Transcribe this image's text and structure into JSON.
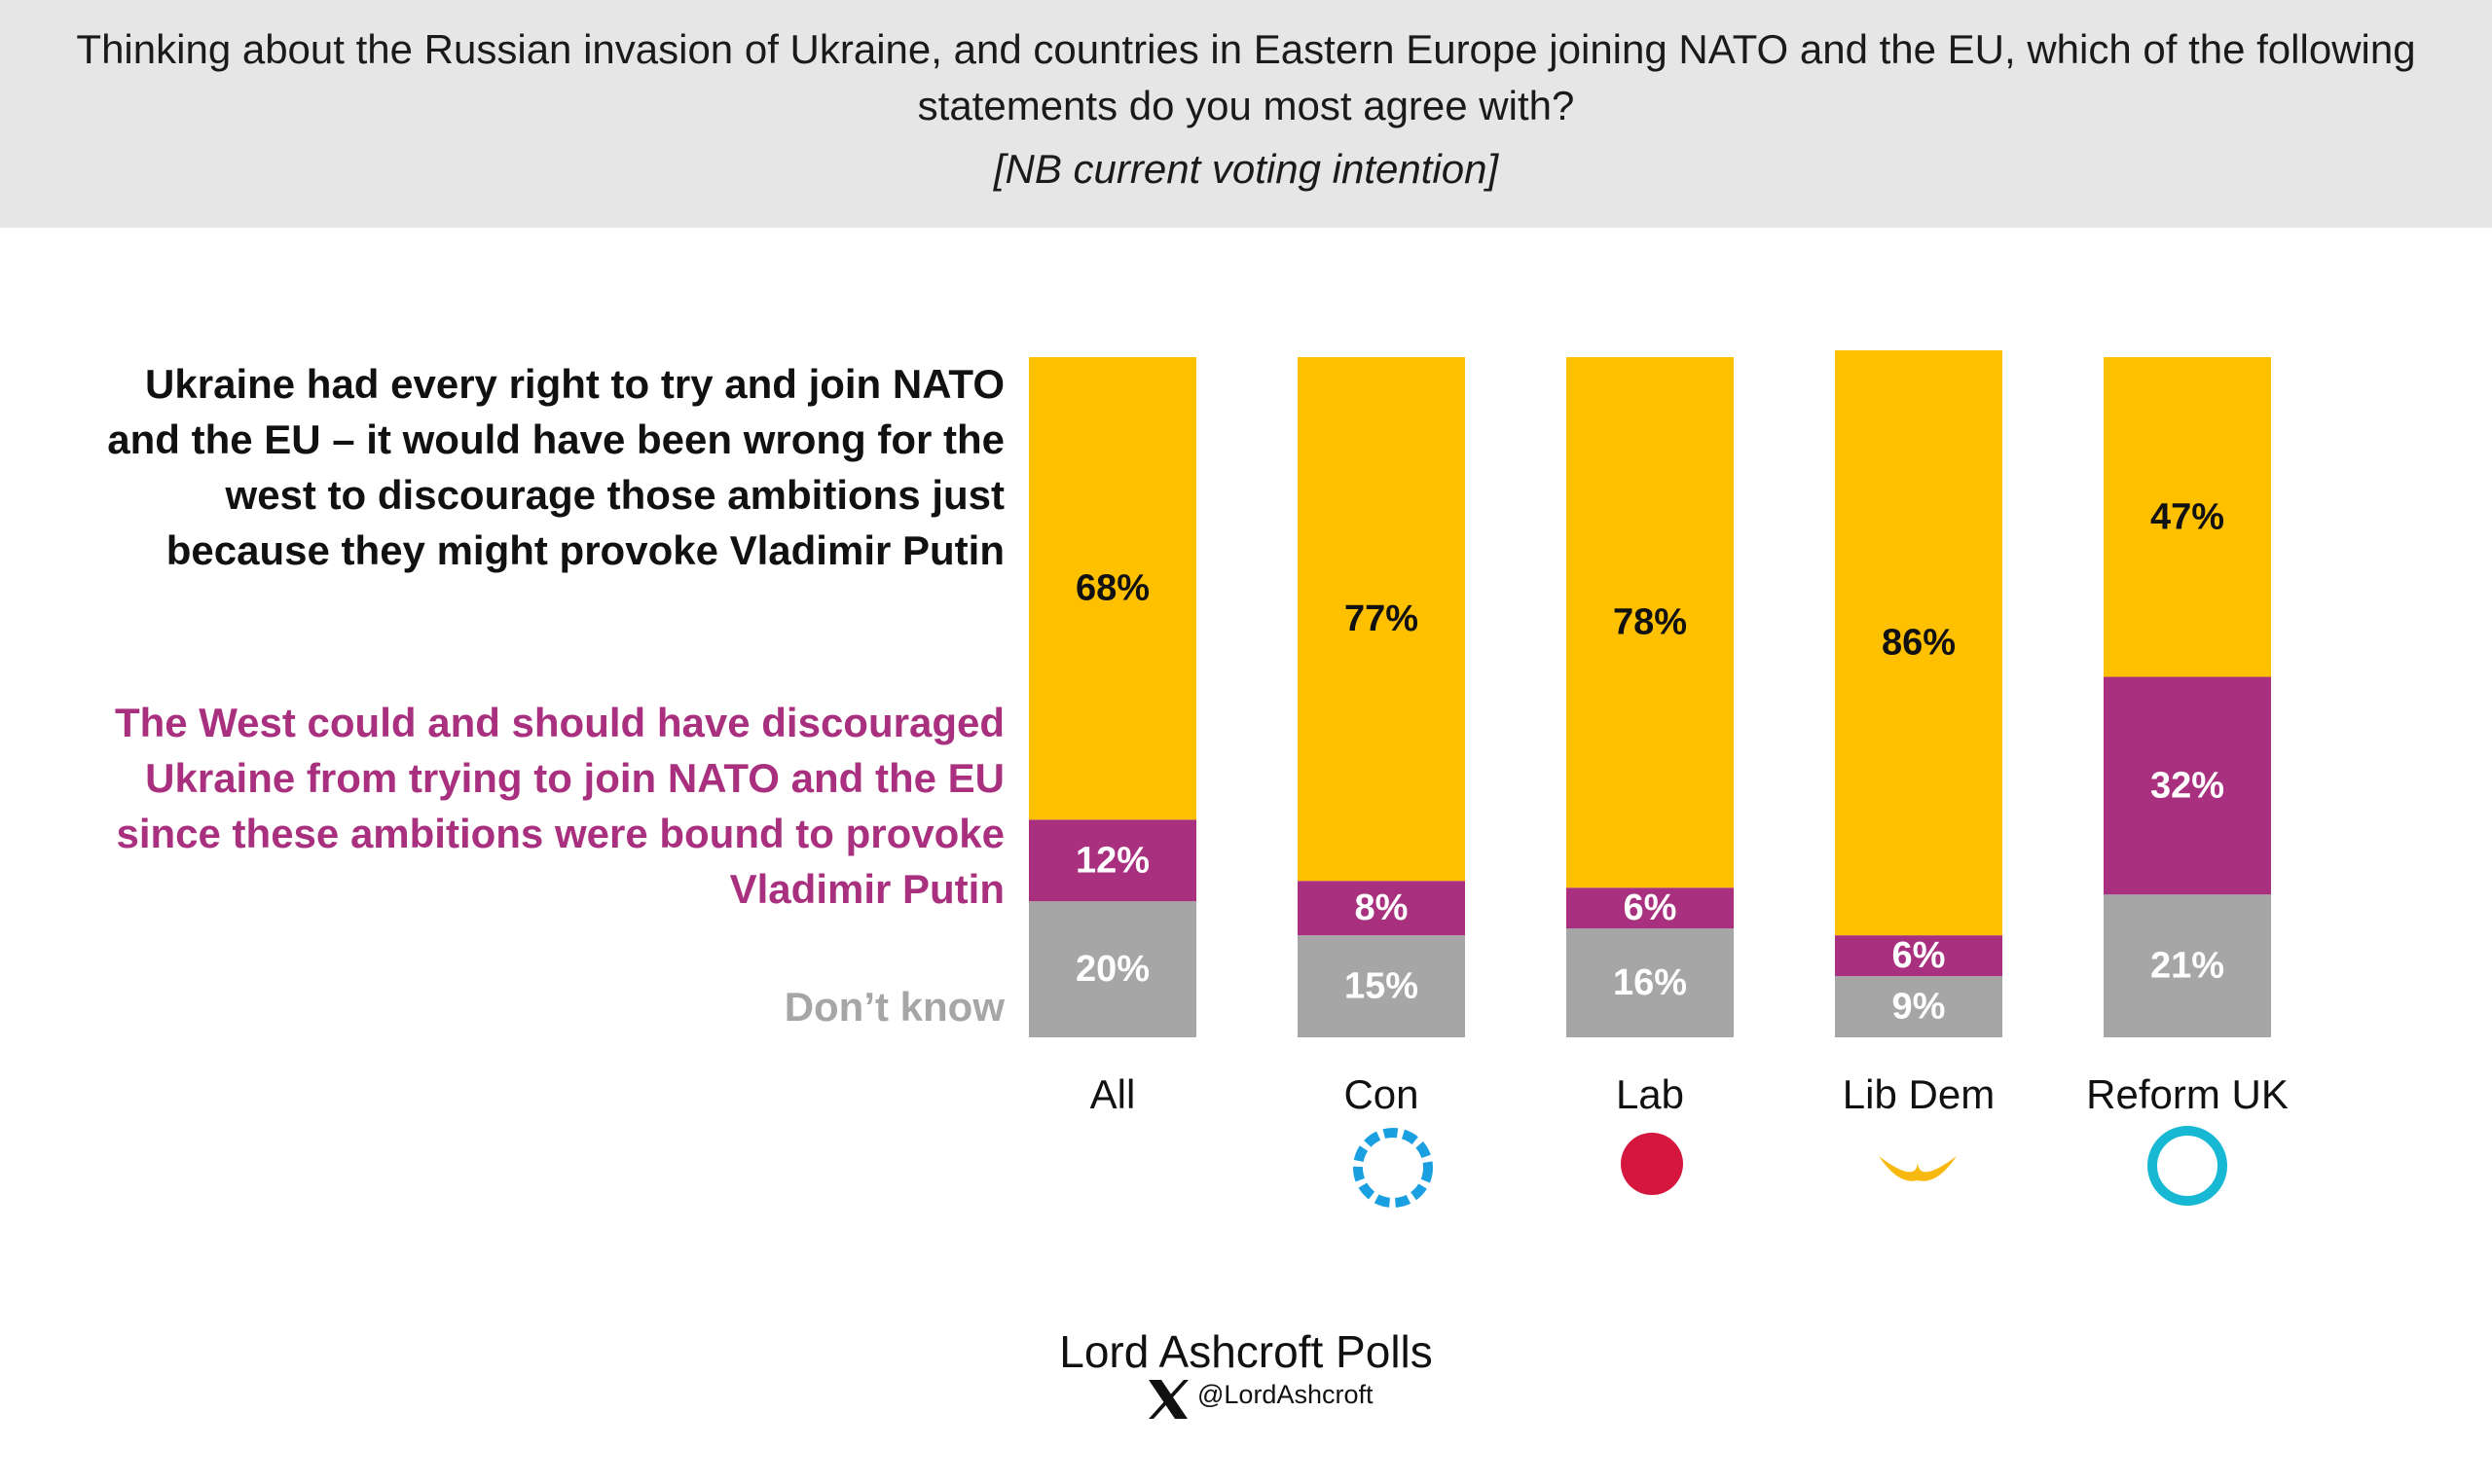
{
  "header": {
    "title": "Thinking about the Russian invasion of Ukraine, and countries in Eastern Europe joining NATO and the EU, which of the following statements do you most agree with?",
    "subtitle": "[NB current voting intention]"
  },
  "chart_data": {
    "type": "stacked_bar",
    "categories": [
      "All",
      "Con",
      "Lab",
      "Lib Dem",
      "Reform UK"
    ],
    "series": [
      {
        "name": "Ukraine had every right to try and join NATO and the EU – it would have been wrong for the west to discourage those ambitions just because they might provoke Vladimir Putin",
        "color": "#FFC000",
        "values": [
          68,
          77,
          78,
          86,
          47
        ],
        "value_labels": [
          "68%",
          "77%",
          "78%",
          "86%",
          "47%"
        ]
      },
      {
        "name": "The West could and should have discouraged Ukraine from trying to join NATO and the EU since these ambitions were bound to provoke Vladimir Putin",
        "color": "#A8307F",
        "values": [
          12,
          8,
          6,
          6,
          32
        ],
        "value_labels": [
          "12%",
          "8%",
          "6%",
          "6%",
          "32%"
        ]
      },
      {
        "name": "Don’t know",
        "color": "#A6A6A6",
        "values": [
          20,
          15,
          16,
          9,
          21
        ],
        "value_labels": [
          "20%",
          "15%",
          "16%",
          "9%",
          "21%"
        ]
      }
    ],
    "ylim": [
      0,
      100
    ]
  },
  "footer": {
    "source": "Lord Ashcroft Polls",
    "handle": "@LordAshcroft"
  }
}
